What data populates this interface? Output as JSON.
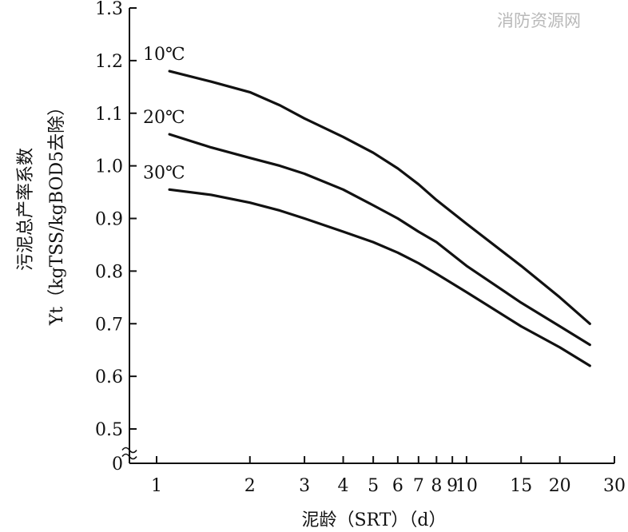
{
  "watermark": "消防资源网",
  "chart_data": {
    "type": "line",
    "xscale": "log",
    "xlim": [
      0.85,
      30
    ],
    "ylim": [
      0,
      1.3
    ],
    "x_ticks": [
      1,
      2,
      3,
      4,
      5,
      6,
      7,
      8,
      9,
      10,
      15,
      20,
      30
    ],
    "x_tick_labels": [
      "1",
      "2",
      "3",
      "4",
      "5",
      "6",
      "7",
      "8",
      "9",
      "10",
      "15",
      "20",
      "30"
    ],
    "y_ticks": [
      0,
      0.5,
      0.6,
      0.7,
      0.8,
      0.9,
      1.0,
      1.1,
      1.2,
      1.3
    ],
    "y_tick_labels": [
      "0",
      "0.5",
      "0.6",
      "0.7",
      "0.8",
      "0.9",
      "1.0",
      "1.1",
      "1.2",
      "1.3"
    ],
    "y_axis_break": true,
    "xlabel": "泥龄（SRT）（d）",
    "ylabel_line1": "污泥总产率系数",
    "ylabel_line2": "Yt（kgTSS/kgBOD5去除）",
    "series": [
      {
        "name": "10℃",
        "x": [
          1.1,
          1.5,
          2.0,
          2.5,
          3.0,
          4.0,
          5.0,
          6.0,
          7.0,
          8.0,
          10.0,
          15.0,
          20.0,
          25.0
        ],
        "y": [
          1.18,
          1.16,
          1.14,
          1.115,
          1.09,
          1.055,
          1.025,
          0.995,
          0.965,
          0.935,
          0.89,
          0.81,
          0.75,
          0.7
        ]
      },
      {
        "name": "20℃",
        "x": [
          1.1,
          1.5,
          2.0,
          2.5,
          3.0,
          4.0,
          5.0,
          6.0,
          7.0,
          8.0,
          10.0,
          15.0,
          20.0,
          25.0
        ],
        "y": [
          1.06,
          1.035,
          1.015,
          1.0,
          0.985,
          0.955,
          0.925,
          0.9,
          0.875,
          0.855,
          0.81,
          0.74,
          0.695,
          0.66
        ]
      },
      {
        "name": "30℃",
        "x": [
          1.1,
          1.5,
          2.0,
          2.5,
          3.0,
          4.0,
          5.0,
          6.0,
          7.0,
          8.0,
          10.0,
          15.0,
          20.0,
          25.0
        ],
        "y": [
          0.955,
          0.945,
          0.93,
          0.915,
          0.9,
          0.875,
          0.855,
          0.835,
          0.815,
          0.795,
          0.76,
          0.695,
          0.655,
          0.62
        ]
      }
    ]
  }
}
